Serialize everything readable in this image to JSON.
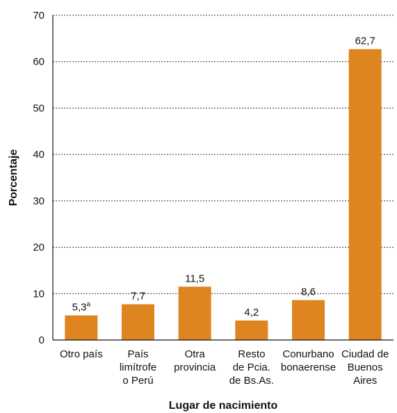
{
  "chart_data": {
    "type": "bar",
    "xlabel": "Lugar de nacimiento",
    "ylabel": "Porcentaje",
    "ylim": [
      0,
      70
    ],
    "yticks": [
      0,
      10,
      20,
      30,
      40,
      50,
      60,
      70
    ],
    "grid": true,
    "bar_color": "#DE8520",
    "categories": [
      [
        "Otro país"
      ],
      [
        "País",
        "limítrofe",
        "o Perú"
      ],
      [
        "Otra",
        "provincia"
      ],
      [
        "Resto",
        "de Pcia.",
        "de Bs.As."
      ],
      [
        "Conurbano",
        "bonaerense"
      ],
      [
        "Ciudad de",
        "Buenos",
        "Aires"
      ]
    ],
    "values": [
      5.3,
      7.7,
      11.5,
      4.2,
      8.6,
      62.7
    ],
    "value_labels": [
      "5,3",
      "7,7",
      "11,5",
      "4,2",
      "8,6",
      "62,7"
    ],
    "value_superscripts": [
      "a",
      "",
      "",
      "",
      "",
      ""
    ]
  }
}
